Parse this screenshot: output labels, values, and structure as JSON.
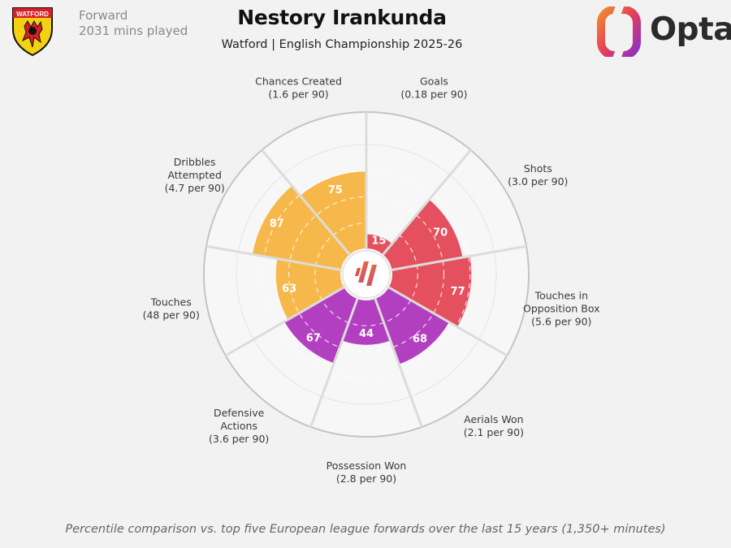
{
  "header": {
    "position": "Forward",
    "minutes": "2031 mins played",
    "title": "Nestory Irankunda",
    "subtitle": "Watford | English Championship 2025-26",
    "club_logo": "watford-crest",
    "brand_logo": "opta-logo",
    "brand_name": "Opta"
  },
  "colors": {
    "creation": "#f7b84b",
    "attack": "#e5505e",
    "defence": "#b23fbf",
    "background": "#f2f2f2",
    "ring": "#c8c8c8"
  },
  "chart_data": {
    "type": "radar-bar",
    "scale": "percentile",
    "range": [
      0,
      100
    ],
    "categories": [
      {
        "name": "Goals",
        "detail": "(0.18 per 90)",
        "value": 15,
        "group": "attack"
      },
      {
        "name": "Shots",
        "detail": "(3.0 per 90)",
        "value": 70,
        "group": "attack"
      },
      {
        "name": "Touches in\nOpposition Box",
        "detail": "(5.6 per 90)",
        "value": 77,
        "group": "attack"
      },
      {
        "name": "Aerials Won",
        "detail": "(2.1 per 90)",
        "value": 68,
        "group": "defence"
      },
      {
        "name": "Possession Won",
        "detail": "(2.8 per 90)",
        "value": 44,
        "group": "defence"
      },
      {
        "name": "Defensive\nActions",
        "detail": "(3.6 per 90)",
        "value": 67,
        "group": "defence"
      },
      {
        "name": "Touches",
        "detail": "(48 per 90)",
        "value": 63,
        "group": "creation"
      },
      {
        "name": "Dribbles\nAttempted",
        "detail": "(4.7 per 90)",
        "value": 87,
        "group": "creation"
      },
      {
        "name": "Chances Created",
        "detail": "(1.6 per 90)",
        "value": 75,
        "group": "creation"
      }
    ]
  },
  "footnote": "Percentile comparison vs. top five European league forwards over the last 15 years (1,350+ minutes)"
}
